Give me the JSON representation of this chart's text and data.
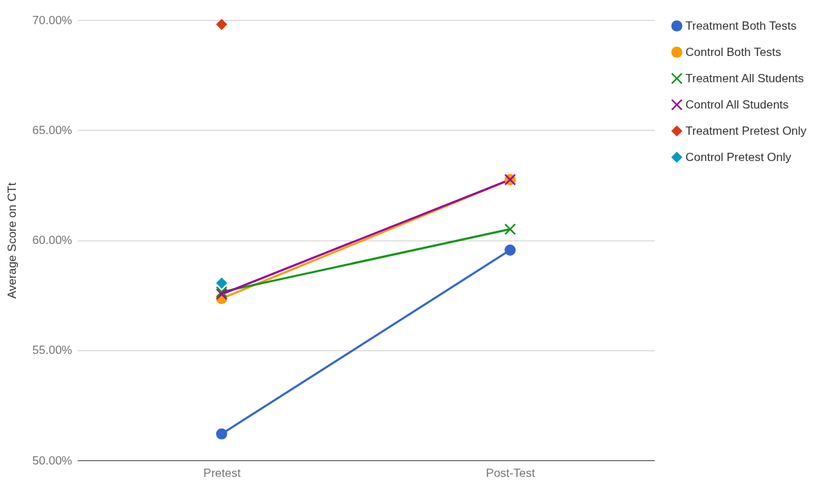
{
  "chart_data": {
    "type": "line",
    "ylabel": "Average Score on CTt",
    "categories": [
      "Pretest",
      "Post-Test"
    ],
    "ylim": [
      50,
      70
    ],
    "yticks": [
      {
        "value": 50,
        "label": "50.00%"
      },
      {
        "value": 55,
        "label": "55.00%"
      },
      {
        "value": 60,
        "label": "60.00%"
      },
      {
        "value": 65,
        "label": "65.00%"
      },
      {
        "value": 70,
        "label": "70.00%"
      }
    ],
    "grid": "y",
    "legend": "top right",
    "series": [
      {
        "name": "Treatment Both Tests",
        "color": "#3366cc",
        "marker": "circle",
        "values": [
          51.2,
          59.55
        ]
      },
      {
        "name": "Control Both Tests",
        "color": "#ff9900",
        "marker": "circle",
        "values": [
          57.35,
          62.75
        ]
      },
      {
        "name": "Treatment All Students",
        "color": "#109618",
        "marker": "cross",
        "values": [
          57.65,
          60.5
        ]
      },
      {
        "name": "Control All Students",
        "color": "#990099",
        "marker": "cross",
        "values": [
          57.55,
          62.75
        ]
      },
      {
        "name": "Treatment Pretest Only",
        "color": "#dc3912",
        "type": "scatter",
        "marker": "diamond",
        "values": [
          69.8,
          null
        ]
      },
      {
        "name": "Control Pretest Only",
        "color": "#0099c6",
        "type": "scatter",
        "marker": "diamond",
        "values": [
          58.05,
          null
        ]
      }
    ]
  }
}
